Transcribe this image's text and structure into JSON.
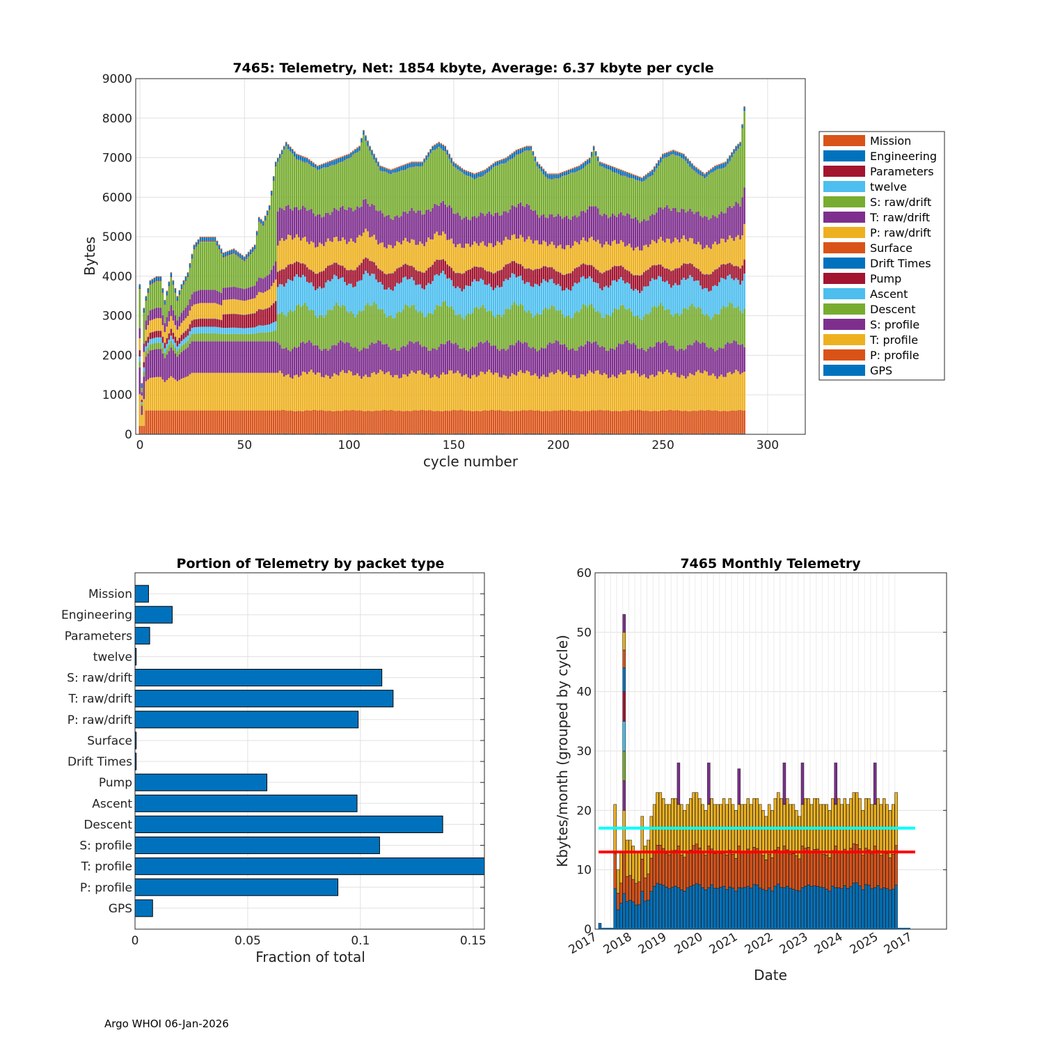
{
  "footer": "Argo WHOI 06-Jan-2026",
  "chart_data": [
    {
      "id": "telemetry-by-cycle",
      "type": "stacked-bar",
      "title": "7465: Telemetry, Net:   1854 kbyte,  Average: 6.37 kbyte per cycle",
      "xlabel": "cycle number",
      "ylabel": "Bytes",
      "xlim": [
        -2,
        318
      ],
      "ylim": [
        0,
        9000
      ],
      "xticks": [
        0,
        50,
        100,
        150,
        200,
        250,
        300
      ],
      "yticks": [
        0,
        1000,
        2000,
        3000,
        4000,
        5000,
        6000,
        7000,
        8000,
        9000
      ],
      "grid": true,
      "legend_position": "outside-right",
      "legend": [
        "Mission",
        "Engineering",
        "Parameters",
        "twelve",
        "S: raw/drift",
        "T: raw/drift",
        "P: raw/drift",
        "Surface",
        "Drift Times",
        "Pump",
        "Ascent",
        "Descent",
        "S: profile",
        "T: profile",
        "P: profile",
        "GPS"
      ],
      "legend_colors": [
        "#D95319",
        "#0072BD",
        "#A2142F",
        "#4DBEEE",
        "#77AC30",
        "#7E2F8E",
        "#EDB120",
        "#D95319",
        "#0072BD",
        "#A2142F",
        "#4DBEEE",
        "#77AC30",
        "#7E2F8E",
        "#EDB120",
        "#D95319",
        "#0072BD"
      ],
      "stack_order_bottom_up": [
        "GPS",
        "P: profile",
        "T: profile",
        "S: profile",
        "Descent",
        "Ascent",
        "Pump",
        "Drift Times",
        "Surface",
        "P: raw/drift",
        "T: raw/drift",
        "S: raw/drift",
        "twelve",
        "Parameters",
        "Engineering",
        "Mission"
      ],
      "cycles": [
        0,
        289
      ],
      "total_bytes_by_cycle": {
        "x": [
          0,
          1,
          2,
          3,
          5,
          8,
          10,
          12,
          15,
          18,
          20,
          23,
          26,
          29,
          30,
          33,
          36,
          40,
          45,
          50,
          55,
          57,
          59,
          62,
          65,
          66,
          70,
          75,
          80,
          85,
          90,
          95,
          100,
          105,
          107,
          110,
          115,
          120,
          125,
          130,
          135,
          140,
          143,
          146,
          150,
          155,
          160,
          165,
          170,
          175,
          180,
          185,
          187,
          190,
          195,
          200,
          205,
          210,
          215,
          217,
          220,
          225,
          230,
          235,
          240,
          245,
          250,
          255,
          260,
          265,
          270,
          275,
          280,
          285,
          287,
          289
        ],
        "y": [
          3800,
          1300,
          3200,
          3500,
          3900,
          4000,
          4000,
          3400,
          4100,
          3500,
          3800,
          4100,
          4800,
          5000,
          5000,
          5000,
          5000,
          4600,
          4700,
          4500,
          4800,
          5500,
          5400,
          5800,
          6900,
          7000,
          7400,
          7100,
          7000,
          6800,
          6900,
          7000,
          7100,
          7300,
          7700,
          7300,
          6800,
          6700,
          6800,
          6900,
          6900,
          7300,
          7400,
          7300,
          6900,
          6700,
          6600,
          6700,
          6900,
          7000,
          7200,
          7300,
          7300,
          6900,
          6600,
          6600,
          6700,
          6800,
          7000,
          7300,
          6900,
          6800,
          6700,
          6600,
          6500,
          6700,
          7100,
          7200,
          7100,
          6800,
          6600,
          6800,
          6900,
          7300,
          7400,
          8300
        ]
      },
      "cumulative_tops_typical": {
        "P: profile": 600,
        "T: profile": 1600,
        "S: profile": 2400,
        "Descent": 3400,
        "Ascent": 4200,
        "Pump": 4600,
        "P: raw/drift": 5300,
        "T: raw/drift": 6100,
        "S: raw/drift": 6850
      }
    },
    {
      "id": "portion-by-packet",
      "type": "barh",
      "title": "Portion of Telemetry by packet type",
      "xlabel": "Fraction of total",
      "ylabel": "",
      "xlim": [
        0,
        0.155
      ],
      "xticks": [
        0,
        0.05,
        0.1,
        0.15
      ],
      "xtick_labels": [
        "0",
        "0.05",
        "0.1",
        "0.15"
      ],
      "categories": [
        "Mission",
        "Engineering",
        "Parameters",
        "twelve",
        "S: raw/drift",
        "T: raw/drift",
        "P: raw/drift",
        "Surface",
        "Drift Times",
        "Pump",
        "Ascent",
        "Descent",
        "S: profile",
        "T: profile",
        "P: profile",
        "GPS"
      ],
      "values": [
        0.006,
        0.0165,
        0.0065,
        0.0005,
        0.1095,
        0.1145,
        0.099,
        0.0005,
        0.0005,
        0.0585,
        0.0985,
        0.1365,
        0.1085,
        0.158,
        0.09,
        0.0078
      ],
      "color": "#0072BD",
      "grid": true
    },
    {
      "id": "monthly-telemetry",
      "type": "stacked-bar",
      "title": "7465 Monthly Telemetry",
      "xlabel": "Date",
      "ylabel": "Kbytes/month (grouped by cycle)",
      "ylim": [
        0,
        60
      ],
      "yticks": [
        0,
        10,
        20,
        30,
        40,
        50,
        60
      ],
      "xtick_labels": [
        "2017",
        "2018",
        "2019",
        "2020",
        "2021",
        "2022",
        "2023",
        "2024",
        "2025",
        "2017"
      ],
      "grid": true,
      "reference_lines": [
        {
          "label": "cyan",
          "value": 17,
          "color": "#00FFFF"
        },
        {
          "label": "red",
          "value": 13,
          "color": "#FF0000"
        }
      ],
      "months_start": "2017-10",
      "monthly_totals": [
        1,
        0,
        0,
        0,
        0,
        21,
        10,
        13,
        53,
        15,
        15,
        14,
        13,
        13,
        19,
        14,
        15,
        19,
        21,
        23,
        23,
        22,
        21,
        21,
        22,
        22,
        28,
        21,
        20,
        21,
        22,
        23,
        23,
        22,
        21,
        20,
        28,
        22,
        21,
        21,
        21,
        22,
        21,
        22,
        21,
        20,
        27,
        21,
        21,
        22,
        21,
        22,
        22,
        21,
        20,
        19,
        21,
        20,
        22,
        23,
        22,
        28,
        22,
        21,
        21,
        20,
        19,
        28,
        22,
        22,
        21,
        22,
        22,
        21,
        21,
        21,
        20,
        22,
        28,
        22,
        21,
        22,
        21,
        22,
        23,
        23,
        22,
        20,
        22,
        22,
        21,
        28,
        22,
        21,
        22,
        21,
        20,
        21,
        23
      ],
      "spike_months": {
        "8": 53
      }
    }
  ]
}
